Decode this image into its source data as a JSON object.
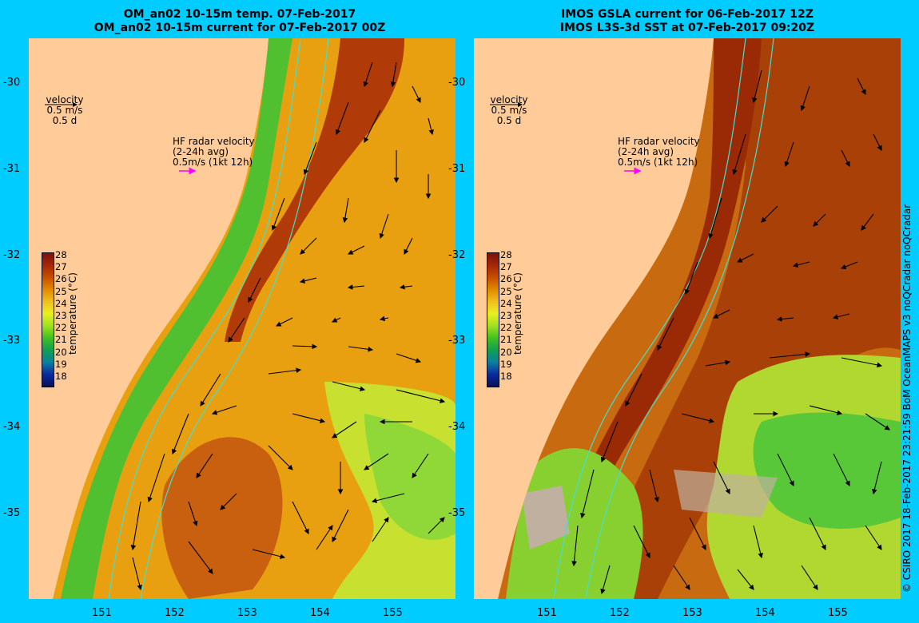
{
  "left_panel": {
    "title_line1": "OM_an02 10-15m temp. 07-Feb-2017",
    "title_line2": "OM_an02 10-15m current for 07-Feb-2017 00Z"
  },
  "right_panel": {
    "title_line1": "IMOS GSLA current for 06-Feb-2017 12Z",
    "title_line2": "IMOS L3S-3d SST at 07-Feb-2017 09:20Z"
  },
  "velocity_legend": {
    "label": "velocity",
    "speed": "0.5 m/s",
    "duration": "0.5 d"
  },
  "hf_radar_legend": {
    "line1": "HF radar velocity",
    "line2": "(2-24h avg)",
    "line3": "0.5m/s (1kt 12h)",
    "arrow_color": "#ff00ff"
  },
  "colorbar": {
    "unit_label": "temperature (°C)",
    "ticks": [
      "28",
      "27",
      "26",
      "25",
      "24",
      "23",
      "22",
      "21",
      "20",
      "19",
      "18"
    ],
    "colors": [
      "#7a1010",
      "#a52808",
      "#c84e00",
      "#e08a00",
      "#f0c020",
      "#e8f020",
      "#a0e020",
      "#40c020",
      "#10a050",
      "#0a80a0",
      "#0a2aa0",
      "#08105a"
    ]
  },
  "longitude_ticks": [
    "151",
    "152",
    "153",
    "154",
    "155"
  ],
  "latitude_ticks": [
    "-30",
    "-31",
    "-32",
    "-33",
    "-34",
    "-35"
  ],
  "credit": "© CSIRO 2017   18-Feb-2017 23:21:59 BoM OceanMAPS v3 noQCradar noQCradar",
  "colors": {
    "frame_bg": "#00ccff",
    "land": "#ffcc99",
    "coast_contour": "#40e0d0"
  }
}
